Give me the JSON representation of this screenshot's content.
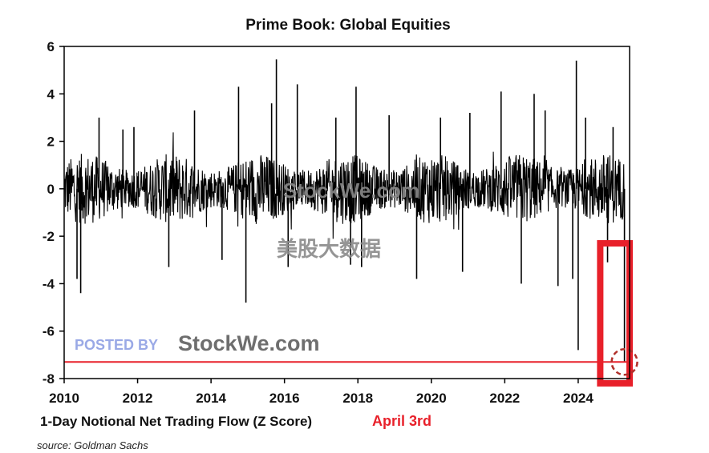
{
  "chart_data": {
    "type": "line",
    "title": "Prime Book: Global Equities",
    "xlabel": "1-Day Notional Net Trading Flow (Z Score)",
    "annotation": "April 3rd",
    "source": "source: Goldman Sachs",
    "xlim": [
      2010,
      2025.4
    ],
    "ylim": [
      -8,
      6
    ],
    "x_ticks": [
      "2010",
      "2012",
      "2014",
      "2016",
      "2018",
      "2020",
      "2022",
      "2024"
    ],
    "y_ticks": [
      "6",
      "4",
      "2",
      "0",
      "-2",
      "-4",
      "-6",
      "-8"
    ],
    "grid": false,
    "reference_line": {
      "y": -7.3,
      "color": "#e8202a"
    },
    "highlight_box": {
      "x_range": [
        2024.6,
        2025.4
      ],
      "y_range": [
        -8.2,
        -2.3
      ],
      "color": "#e8202a"
    },
    "marked_point": {
      "x": 2025.26,
      "y": -7.3,
      "color": "#b0302a"
    },
    "series": [
      {
        "color": "#000000",
        "spikes": [
          {
            "x": 2010.45,
            "y": -4.4
          },
          {
            "x": 2010.35,
            "y": -3.8
          },
          {
            "x": 2010.95,
            "y": 3.0
          },
          {
            "x": 2011.6,
            "y": 2.5
          },
          {
            "x": 2011.9,
            "y": 2.6
          },
          {
            "x": 2012.85,
            "y": -3.3
          },
          {
            "x": 2013.55,
            "y": 3.3
          },
          {
            "x": 2014.3,
            "y": -3.0
          },
          {
            "x": 2014.75,
            "y": 4.3
          },
          {
            "x": 2014.95,
            "y": -4.8
          },
          {
            "x": 2015.65,
            "y": 3.6
          },
          {
            "x": 2015.78,
            "y": 5.45
          },
          {
            "x": 2016.1,
            "y": -3.3
          },
          {
            "x": 2016.35,
            "y": 4.4
          },
          {
            "x": 2017.4,
            "y": 3.0
          },
          {
            "x": 2017.8,
            "y": -3.2
          },
          {
            "x": 2017.95,
            "y": 4.3
          },
          {
            "x": 2018.1,
            "y": -3.3
          },
          {
            "x": 2018.85,
            "y": 3.1
          },
          {
            "x": 2019.6,
            "y": -3.8
          },
          {
            "x": 2020.25,
            "y": 3.0
          },
          {
            "x": 2020.85,
            "y": -3.5
          },
          {
            "x": 2021.05,
            "y": 3.2
          },
          {
            "x": 2021.9,
            "y": 4.1
          },
          {
            "x": 2022.45,
            "y": -4.0
          },
          {
            "x": 2022.8,
            "y": 4.0
          },
          {
            "x": 2023.1,
            "y": 3.3
          },
          {
            "x": 2023.45,
            "y": -4.1
          },
          {
            "x": 2023.85,
            "y": -3.8
          },
          {
            "x": 2023.95,
            "y": 5.4
          },
          {
            "x": 2024.0,
            "y": -6.8
          },
          {
            "x": 2024.2,
            "y": 3.0
          },
          {
            "x": 2024.8,
            "y": -3.1
          },
          {
            "x": 2024.95,
            "y": 2.6
          },
          {
            "x": 2025.26,
            "y": -7.3
          }
        ]
      }
    ]
  },
  "watermarks": {
    "site": "StockWe.com",
    "chinese": "美股大数据",
    "posted_by": "POSTED BY",
    "posted_site": "StockWe.com"
  }
}
